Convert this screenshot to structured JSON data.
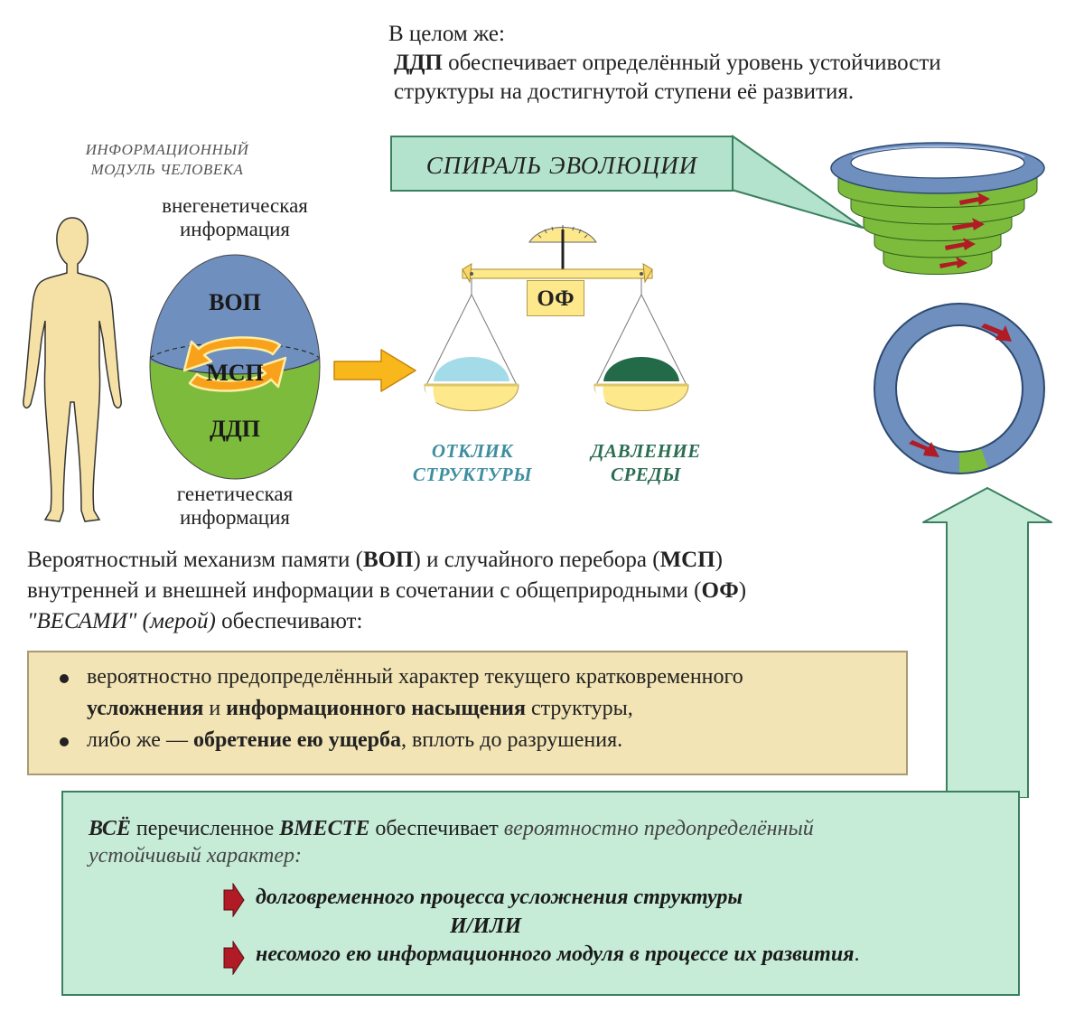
{
  "intro": {
    "line1": "В целом же:",
    "line2_bold": "ДДП",
    "line2_rest": " обеспечивает определённый уровень устойчивости",
    "line3": "структуры на достигнутой ступени её развития."
  },
  "module_label": {
    "line1": "ИНФОРМАЦИОННЫЙ",
    "line2": "МОДУЛЬ ЧЕЛОВЕКА"
  },
  "egg": {
    "top_caption_line1": "внегенетическая",
    "top_caption_line2": "информация",
    "top_label": "ВОП",
    "middle_label": "МСП",
    "bottom_label": "ДДП",
    "bottom_caption_line1": "генетическая",
    "bottom_caption_line2": "информация"
  },
  "scales": {
    "beam_label": "ОФ",
    "left_caption_line1": "ОТКЛИК",
    "left_caption_line2": "СТРУКТУРЫ",
    "right_caption_line1": "ДАВЛЕНИЕ",
    "right_caption_line2": "СРЕДЫ"
  },
  "spiral_label": "СПИРАЛЬ ЭВОЛЮЦИИ",
  "mechanism": {
    "p1": "Вероятностный механизм памяти (",
    "b1": "ВОП",
    "p2": ") и случайного перебора (",
    "b2": "МСП",
    "p3": ")",
    "p4": "внутренней и внешней информации в сочетании с общеприродными (",
    "b3": "ОФ",
    "p5": ")",
    "i1": "\"ВЕСАМИ\" (мерой)",
    "p6": " обеспечивают:"
  },
  "box1": {
    "b1_p1": "вероятностно предопределённый характер текущего кратковременного",
    "b1_bold1": "усложнения",
    "b1_p2": " и ",
    "b1_bold2": "информационного насыщения",
    "b1_p3": " структуры,",
    "b2_p1": "либо же — ",
    "b2_bold": "обретение ею ущерба",
    "b2_p2": ", вплоть до разрушения."
  },
  "box2": {
    "bi1": "ВСЁ",
    "t1": " перечисленное ",
    "bi2": "ВМЕСТЕ",
    "t2": " обеспечивает ",
    "i1": "вероятностно предопределённый",
    "i2": "устойчивый характер:",
    "item1": "долговременного процесса усложнения структуры",
    "connector": "И/ИЛИ",
    "item2": "несомого ею информационного модуля в процессе их развития",
    "item2_end": "."
  },
  "colors": {
    "blue": "#6f8fbe",
    "green": "#7dbb3c",
    "orange": "#f8a21c",
    "yellow": "#fde88c",
    "light_blue": "#a3dbe8",
    "dark_green": "#236b48",
    "mint": "#c6ecd8",
    "beige": "#f2e4b5",
    "red_arrow": "#b01b25",
    "teal_text": "#3f8ea0",
    "green_text": "#2b6d52"
  }
}
